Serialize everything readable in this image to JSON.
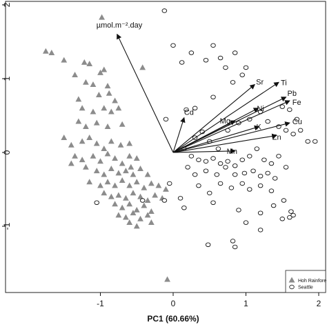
{
  "chart_data": {
    "type": "scatter",
    "title": "",
    "xlabel": "PC1 (60.66%)",
    "ylabel": "",
    "xlim": [
      -2.3,
      2.05
    ],
    "ylim": [
      -1.85,
      2.05
    ],
    "grid": false,
    "legend_placement": "bottom-right",
    "x_ticks": [
      -1,
      0,
      1,
      2
    ],
    "x_tick_labels": [
      "-1",
      "0",
      "1",
      "2"
    ],
    "y_ticks": [
      -1,
      0,
      1,
      2
    ],
    "y_tick_labels": [
      "-1",
      "0",
      "1",
      "2"
    ],
    "series": [
      {
        "name": "Hoh Rainforest",
        "legend_label": "Hoh Rainfore",
        "marker": "triangle",
        "color": "#8c8c8c",
        "points": [
          [
            -1.75,
            1.37
          ],
          [
            -1.67,
            1.35
          ],
          [
            -1.5,
            1.25
          ],
          [
            -1.22,
            1.22
          ],
          [
            -0.98,
            1.83
          ],
          [
            -1.35,
            1.05
          ],
          [
            -1.15,
            1.2
          ],
          [
            -1.0,
            1.08
          ],
          [
            -0.95,
            1.12
          ],
          [
            -1.2,
            0.95
          ],
          [
            -1.1,
            0.92
          ],
          [
            -0.9,
            0.9
          ],
          [
            -1.3,
            0.72
          ],
          [
            -1.02,
            0.78
          ],
          [
            -0.88,
            0.8
          ],
          [
            -0.8,
            0.7
          ],
          [
            -1.25,
            0.6
          ],
          [
            -1.1,
            0.55
          ],
          [
            -0.95,
            0.6
          ],
          [
            -0.85,
            0.55
          ],
          [
            -0.75,
            0.6
          ],
          [
            -1.3,
            0.42
          ],
          [
            -1.2,
            0.35
          ],
          [
            -1.05,
            0.4
          ],
          [
            -0.9,
            0.35
          ],
          [
            -0.7,
            0.38
          ],
          [
            -1.5,
            0.2
          ],
          [
            -1.4,
            0.1
          ],
          [
            -1.25,
            0.15
          ],
          [
            -1.15,
            0.2
          ],
          [
            -1.05,
            0.12
          ],
          [
            -0.95,
            0.05
          ],
          [
            -0.85,
            0.15
          ],
          [
            -0.72,
            0.1
          ],
          [
            -0.6,
            0.12
          ],
          [
            -1.35,
            -0.05
          ],
          [
            -1.25,
            -0.1
          ],
          [
            -1.1,
            -0.05
          ],
          [
            -1.0,
            -0.12
          ],
          [
            -0.9,
            -0.02
          ],
          [
            -0.8,
            -0.08
          ],
          [
            -0.7,
            -0.15
          ],
          [
            -0.6,
            -0.05
          ],
          [
            -0.5,
            -0.08
          ],
          [
            -1.4,
            -0.15
          ],
          [
            -1.2,
            -0.2
          ],
          [
            -1.05,
            -0.25
          ],
          [
            -0.95,
            -0.3
          ],
          [
            -0.85,
            -0.22
          ],
          [
            -0.75,
            -0.28
          ],
          [
            -0.65,
            -0.25
          ],
          [
            -0.55,
            -0.3
          ],
          [
            -0.45,
            -0.22
          ],
          [
            -0.35,
            -0.3
          ],
          [
            -1.15,
            -0.4
          ],
          [
            -1.0,
            -0.45
          ],
          [
            -0.9,
            -0.4
          ],
          [
            -0.8,
            -0.45
          ],
          [
            -0.7,
            -0.38
          ],
          [
            -0.6,
            -0.45
          ],
          [
            -0.5,
            -0.4
          ],
          [
            -0.4,
            -0.48
          ],
          [
            -0.3,
            -0.42
          ],
          [
            -0.2,
            -0.45
          ],
          [
            -0.1,
            -0.5
          ],
          [
            -0.95,
            -0.55
          ],
          [
            -0.85,
            -0.6
          ],
          [
            -0.75,
            -0.58
          ],
          [
            -0.65,
            -0.62
          ],
          [
            -0.55,
            -0.55
          ],
          [
            -0.45,
            -0.6
          ],
          [
            -0.35,
            -0.65
          ],
          [
            -0.25,
            -0.58
          ],
          [
            -0.15,
            -0.62
          ],
          [
            -0.8,
            -0.7
          ],
          [
            -0.7,
            -0.75
          ],
          [
            -0.6,
            -0.7
          ],
          [
            -0.5,
            -0.78
          ],
          [
            -0.4,
            -0.72
          ],
          [
            -0.3,
            -0.8
          ],
          [
            -0.75,
            -0.85
          ],
          [
            -0.65,
            -0.88
          ],
          [
            -0.55,
            -0.82
          ],
          [
            -0.45,
            -0.9
          ],
          [
            -0.35,
            -0.85
          ],
          [
            -0.6,
            -0.95
          ],
          [
            -0.5,
            -1.0
          ],
          [
            -0.3,
            -0.95
          ],
          [
            -0.42,
            1.15
          ],
          [
            -0.58,
            -0.2
          ],
          [
            -0.08,
            -1.72
          ]
        ]
      },
      {
        "name": "Seattle",
        "legend_label": "Seattle",
        "marker": "circle",
        "color": "#ffffff",
        "points": [
          [
            -0.12,
            1.92
          ],
          [
            0.0,
            1.45
          ],
          [
            0.25,
            1.35
          ],
          [
            0.12,
            1.22
          ],
          [
            0.45,
            1.25
          ],
          [
            0.65,
            1.28
          ],
          [
            0.55,
            1.45
          ],
          [
            0.85,
            1.35
          ],
          [
            0.72,
            1.15
          ],
          [
            0.95,
            1.05
          ],
          [
            1.0,
            1.15
          ],
          [
            0.82,
            0.95
          ],
          [
            0.55,
            0.75
          ],
          [
            0.3,
            0.6
          ],
          [
            0.18,
            0.58
          ],
          [
            -0.1,
            0.45
          ],
          [
            0.3,
            0.2
          ],
          [
            0.4,
            0.28
          ],
          [
            0.5,
            0.15
          ],
          [
            0.62,
            0.05
          ],
          [
            0.75,
            0.3
          ],
          [
            0.9,
            0.4
          ],
          [
            1.05,
            0.45
          ],
          [
            1.2,
            0.55
          ],
          [
            1.3,
            0.42
          ],
          [
            1.45,
            0.35
          ],
          [
            1.55,
            0.3
          ],
          [
            1.65,
            0.25
          ],
          [
            1.75,
            0.3
          ],
          [
            1.85,
            0.15
          ],
          [
            1.95,
            0.15
          ],
          [
            1.7,
            0.45
          ],
          [
            1.6,
            0.58
          ],
          [
            1.5,
            0.62
          ],
          [
            0.15,
            0.05
          ],
          [
            0.25,
            -0.05
          ],
          [
            0.35,
            -0.1
          ],
          [
            0.45,
            -0.12
          ],
          [
            0.55,
            -0.08
          ],
          [
            0.65,
            -0.15
          ],
          [
            0.75,
            -0.12
          ],
          [
            0.85,
            -0.18
          ],
          [
            0.95,
            -0.1
          ],
          [
            1.05,
            -0.05
          ],
          [
            1.15,
            0.05
          ],
          [
            1.25,
            -0.1
          ],
          [
            1.35,
            -0.15
          ],
          [
            1.45,
            -0.05
          ],
          [
            1.55,
            -0.2
          ],
          [
            0.2,
            -0.2
          ],
          [
            0.3,
            -0.3
          ],
          [
            0.45,
            -0.25
          ],
          [
            0.6,
            -0.3
          ],
          [
            0.72,
            -0.2
          ],
          [
            0.85,
            -0.3
          ],
          [
            0.98,
            -0.28
          ],
          [
            1.1,
            -0.25
          ],
          [
            1.2,
            -0.32
          ],
          [
            1.3,
            -0.28
          ],
          [
            1.4,
            -0.35
          ],
          [
            0.35,
            -0.45
          ],
          [
            0.5,
            -0.55
          ],
          [
            0.65,
            -0.42
          ],
          [
            0.8,
            -0.48
          ],
          [
            0.95,
            -0.42
          ],
          [
            1.05,
            -0.5
          ],
          [
            1.2,
            -0.45
          ],
          [
            1.35,
            -0.52
          ],
          [
            0.15,
            -0.75
          ],
          [
            0.1,
            -0.62
          ],
          [
            -0.05,
            -0.42
          ],
          [
            -0.12,
            -0.65
          ],
          [
            0.55,
            -0.68
          ],
          [
            0.9,
            -0.78
          ],
          [
            1.2,
            -0.82
          ],
          [
            1.38,
            -0.72
          ],
          [
            1.52,
            -0.65
          ],
          [
            1.62,
            -0.8
          ],
          [
            1.5,
            -0.9
          ],
          [
            1.6,
            -0.88
          ],
          [
            1.65,
            -0.85
          ],
          [
            1.0,
            -0.95
          ],
          [
            1.2,
            -1.05
          ],
          [
            0.82,
            -1.2
          ],
          [
            0.85,
            -1.28
          ],
          [
            0.48,
            -1.25
          ],
          [
            -1.05,
            -0.68
          ],
          [
            -0.42,
            -0.65
          ]
        ]
      }
    ],
    "vectors": [
      {
        "label": "µmol.m⁻².day",
        "x": -0.77,
        "y": 1.6
      },
      {
        "label": "Cd",
        "x": 0.15,
        "y": 0.47
      },
      {
        "label": "Sr",
        "x": 1.12,
        "y": 0.92
      },
      {
        "label": "Ti",
        "x": 1.45,
        "y": 0.95
      },
      {
        "label": "Pb",
        "x": 1.55,
        "y": 0.75
      },
      {
        "label": "Fe",
        "x": 1.6,
        "y": 0.7
      },
      {
        "label": "Ni",
        "x": 1.17,
        "y": 0.6
      },
      {
        "label": "Mg",
        "x": 0.85,
        "y": 0.43
      },
      {
        "label": "Cu",
        "x": 1.6,
        "y": 0.4
      },
      {
        "label": "K",
        "x": 1.18,
        "y": 0.35
      },
      {
        "label": "Zn",
        "x": 1.42,
        "y": 0.23
      },
      {
        "label": "Mn",
        "x": 0.85,
        "y": 0.02
      }
    ]
  }
}
